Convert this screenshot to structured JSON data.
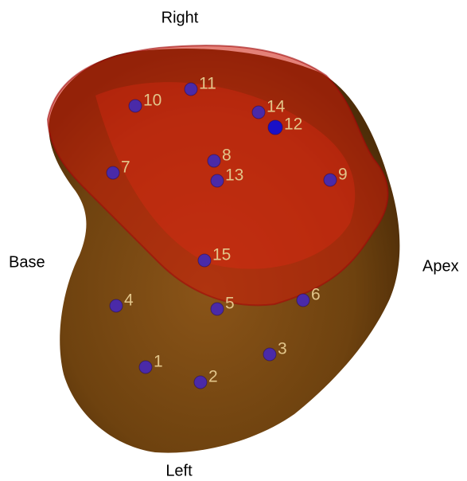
{
  "orientation_labels": {
    "top": "Right",
    "bottom": "Left",
    "left": "Base",
    "right": "Apex"
  },
  "points": [
    {
      "label": "1"
    },
    {
      "label": "2"
    },
    {
      "label": "3"
    },
    {
      "label": "4"
    },
    {
      "label": "5"
    },
    {
      "label": "6"
    },
    {
      "label": "7"
    },
    {
      "label": "8"
    },
    {
      "label": "9"
    },
    {
      "label": "10"
    },
    {
      "label": "11"
    },
    {
      "label": "12"
    },
    {
      "label": "13"
    },
    {
      "label": "14"
    },
    {
      "label": "15"
    }
  ]
}
